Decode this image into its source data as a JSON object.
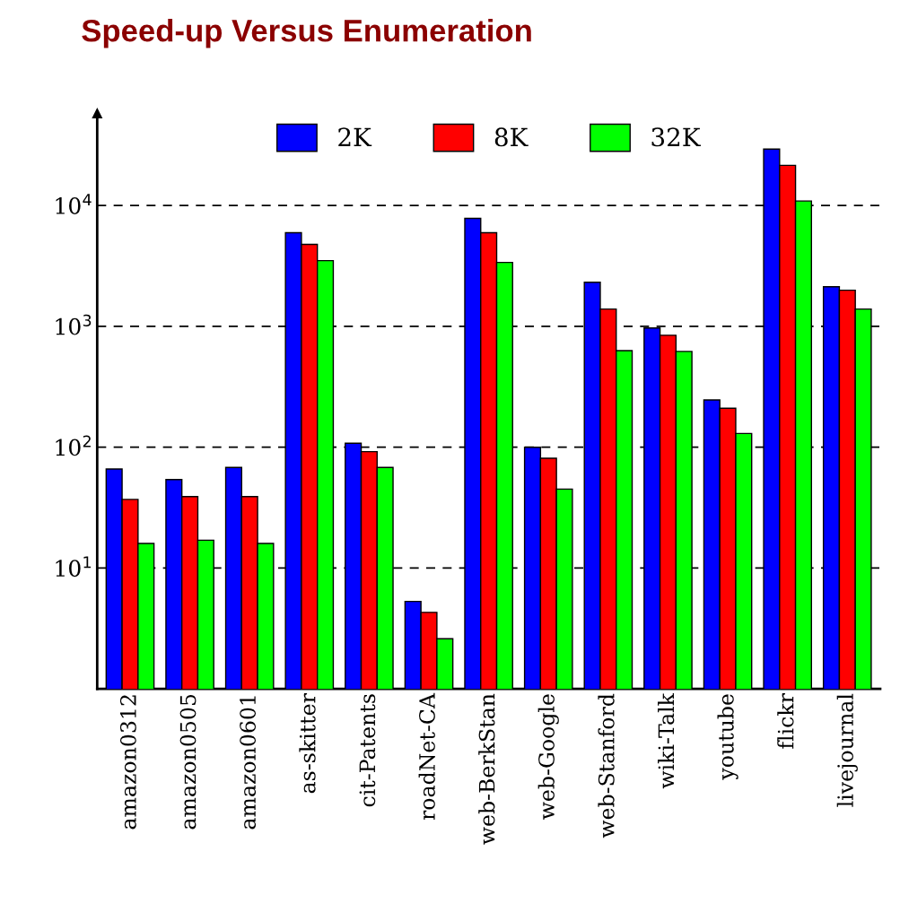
{
  "chart_data": {
    "type": "bar",
    "title": "Speed-up Versus Enumeration",
    "categories": [
      "amazon0312",
      "amazon0505",
      "amazon0601",
      "as-skitter",
      "cit-Patents",
      "roadNet-CA",
      "web-BerkStan",
      "web-Google",
      "web-Stanford",
      "wiki-Talk",
      "youtube",
      "flickr",
      "livejournal"
    ],
    "series": [
      {
        "name": "2K",
        "color": "#0000ff",
        "values": [
          66,
          54,
          68,
          5960,
          108,
          5.3,
          7840,
          100,
          2320,
          970,
          246,
          29300,
          2130
        ]
      },
      {
        "name": "8K",
        "color": "#ff0000",
        "values": [
          37,
          39,
          39,
          4770,
          92,
          4.3,
          5960,
          81,
          1390,
          844,
          210,
          21500,
          1990
        ]
      },
      {
        "name": "32K",
        "color": "#00ff00",
        "values": [
          16,
          17,
          16,
          3500,
          68,
          2.6,
          3380,
          45,
          630,
          620,
          130,
          10900,
          1390
        ]
      }
    ],
    "log": "y",
    "ylim": [
      1,
      58000
    ],
    "yticks": [
      {
        "value": 10,
        "label": "10$^{1}$"
      },
      {
        "value": 100,
        "label": "10$^{2}$"
      },
      {
        "value": 1000,
        "label": "10$^{3}$"
      },
      {
        "value": 10000,
        "label": "10$^{4}$"
      }
    ],
    "grid": "y",
    "legend": "top"
  }
}
